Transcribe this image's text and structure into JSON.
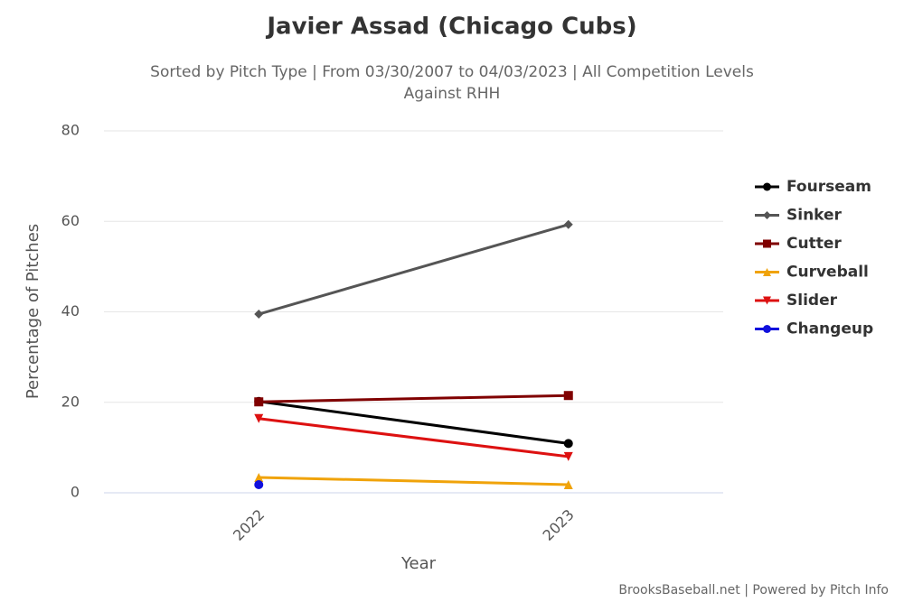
{
  "chart_data": {
    "type": "line",
    "title": "Javier Assad (Chicago Cubs)",
    "subtitle": [
      "Sorted by Pitch Type | From 03/30/2007 to 04/03/2023 | All Competition Levels",
      "Against RHH"
    ],
    "x_label": "Year",
    "y_label": "Percentage of Pitches",
    "credits": "BrooksBaseball.net | Powered by Pitch Info",
    "categories": [
      "2022",
      "2023"
    ],
    "series": [
      {
        "name": "Fourseam",
        "color": "#000000",
        "marker": "circle",
        "values": [
          20.2,
          10.9
        ]
      },
      {
        "name": "Sinker",
        "color": "#555555",
        "marker": "diamond",
        "values": [
          39.5,
          59.3
        ]
      },
      {
        "name": "Cutter",
        "color": "#800000",
        "marker": "square",
        "values": [
          20.1,
          21.5
        ]
      },
      {
        "name": "Curveball",
        "color": "#f0a30a",
        "marker": "triangle",
        "values": [
          3.4,
          1.8
        ]
      },
      {
        "name": "Slider",
        "color": "#dd1111",
        "marker": "triangle-down",
        "values": [
          16.4,
          8.0
        ]
      },
      {
        "name": "Changeup",
        "color": "#1010dd",
        "marker": "circle",
        "values": [
          1.8,
          null
        ]
      }
    ],
    "ylim": [
      0,
      80
    ],
    "yticks": [
      0,
      20,
      40,
      60,
      80
    ],
    "grid": true,
    "legend": "right"
  }
}
